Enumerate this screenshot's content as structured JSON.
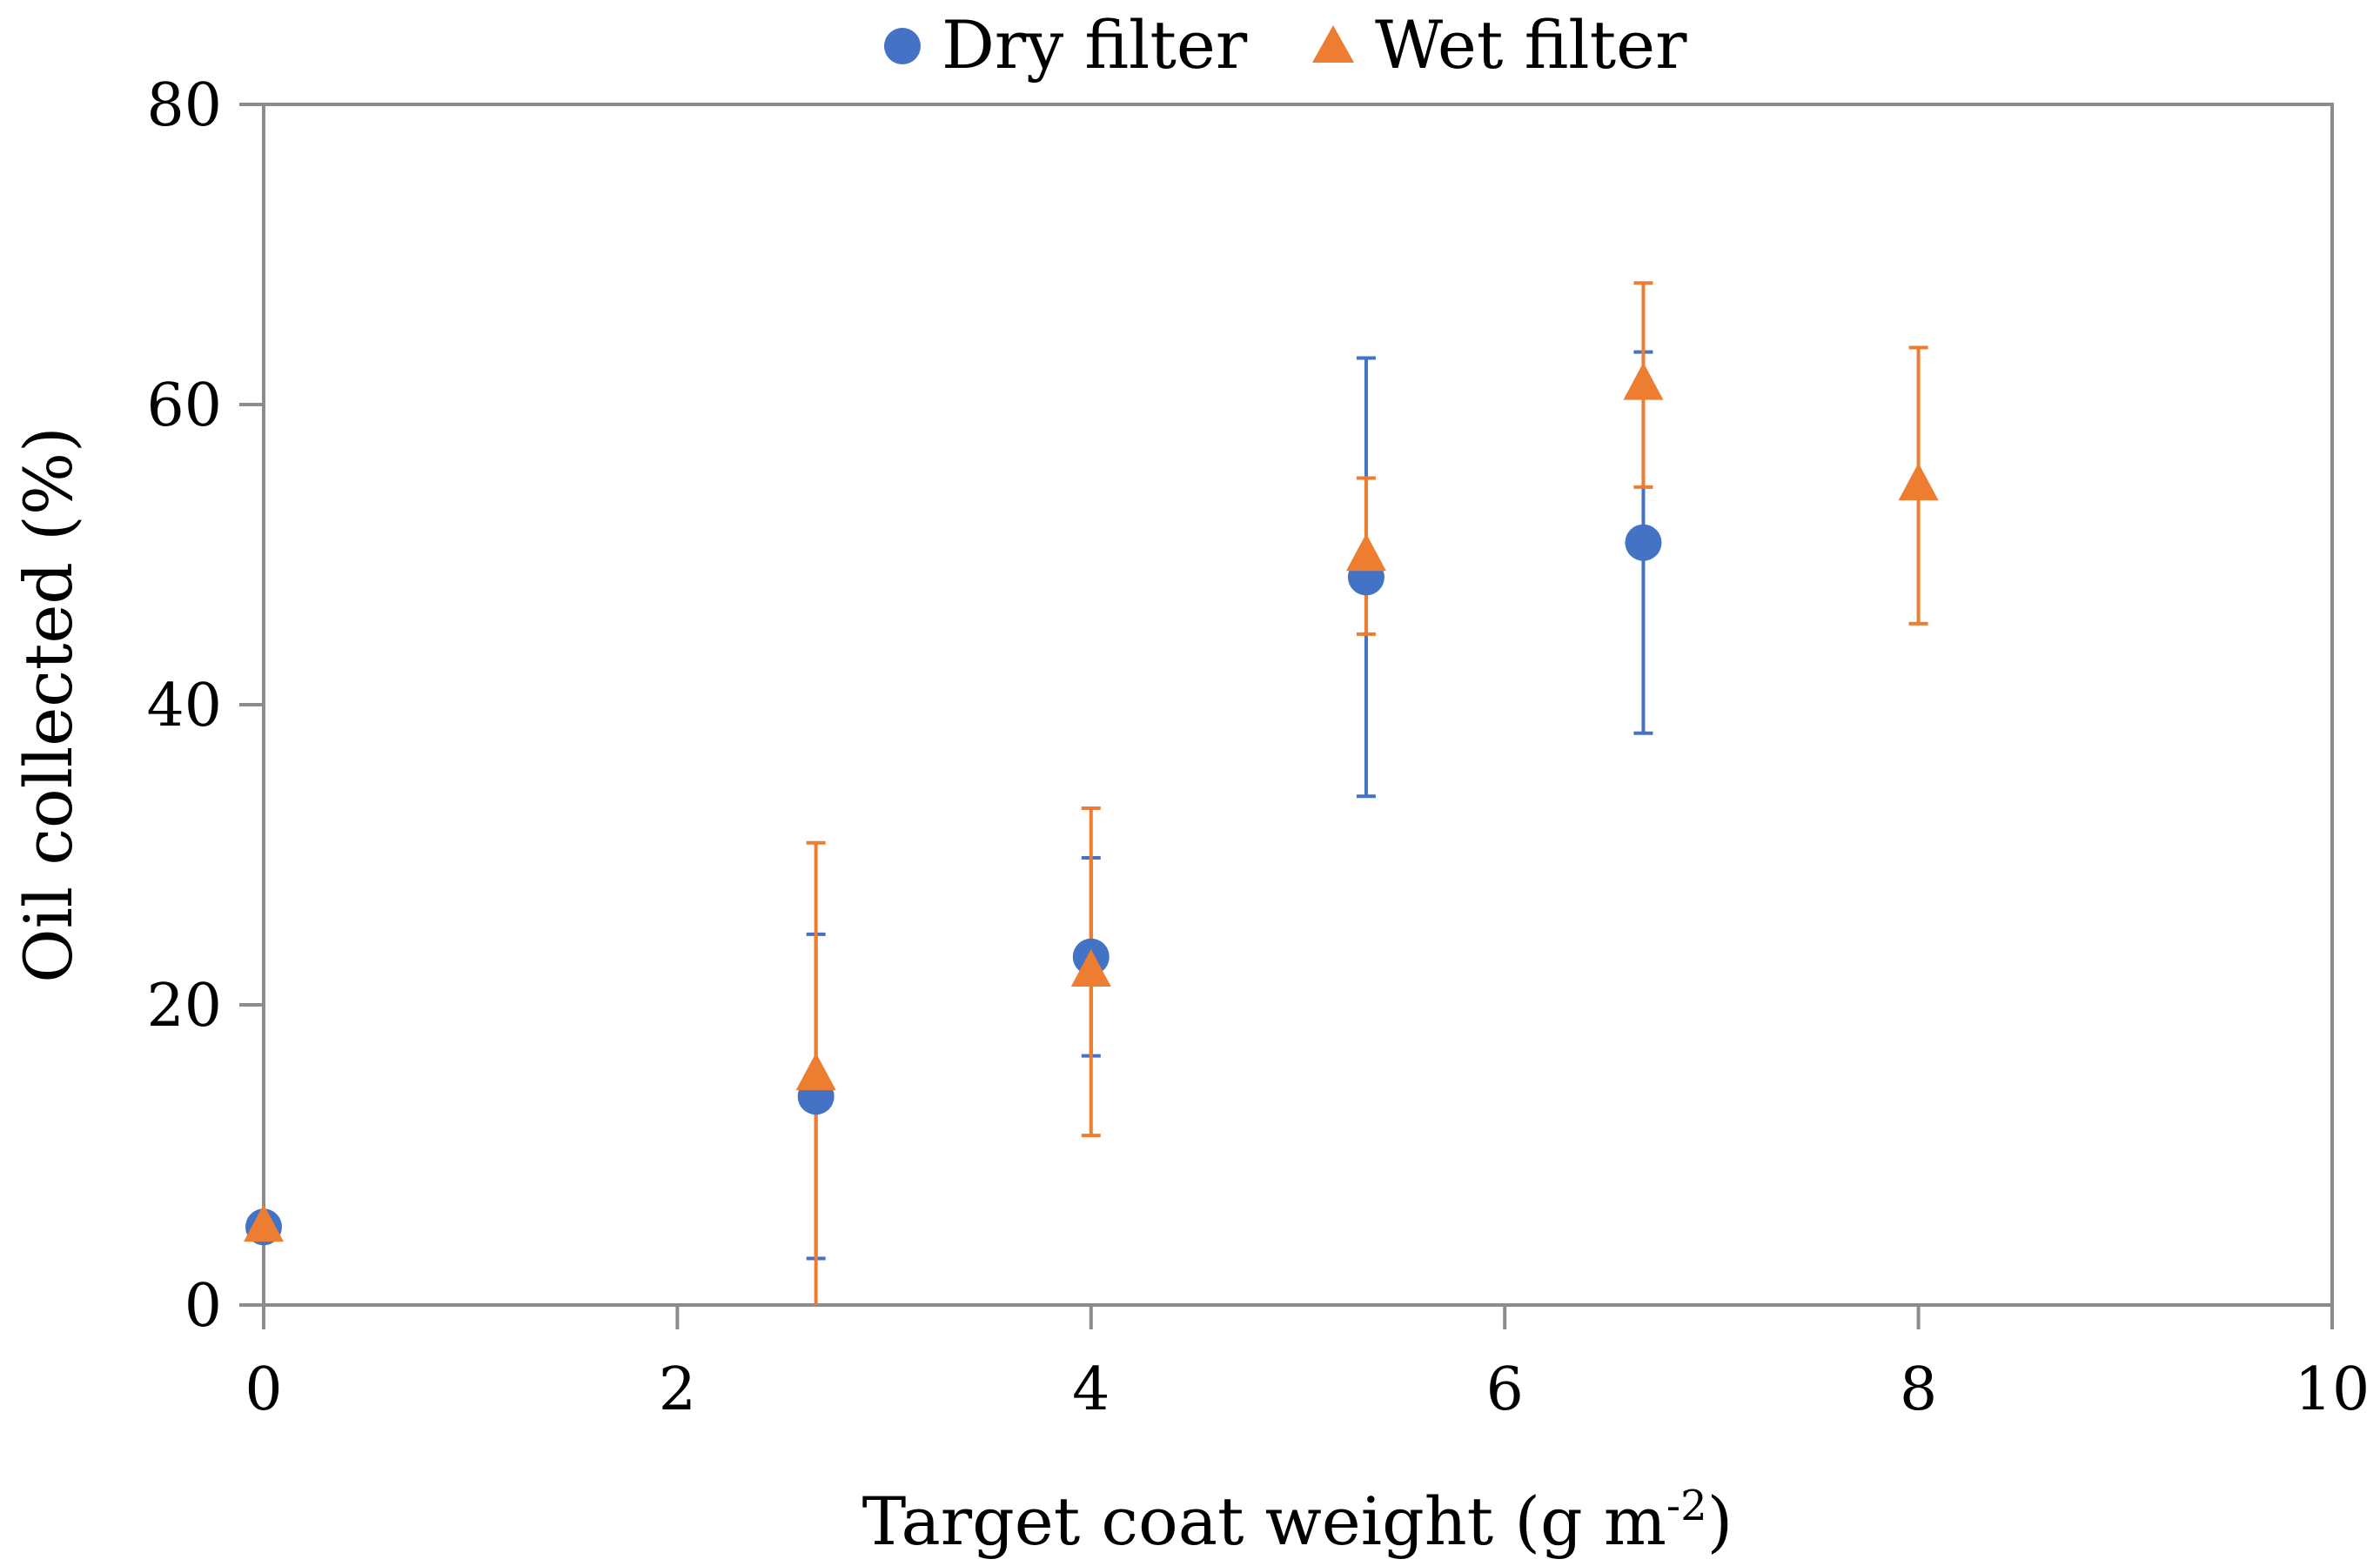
{
  "chart_data": {
    "type": "scatter",
    "title": "",
    "xlabel": "Target coat weight (g m",
    "xlabel_sup": "-2",
    "xlabel_end": ")",
    "ylabel": "Oil collected (%)",
    "xlim": [
      0,
      10
    ],
    "ylim": [
      0,
      80
    ],
    "xticks": [
      "0",
      "2",
      "4",
      "6",
      "8",
      "10"
    ],
    "yticks": [
      "0",
      "20",
      "40",
      "60",
      "80"
    ],
    "grid": false,
    "legend_position": "top-center",
    "series": [
      {
        "name": "Dry filter",
        "marker": "circle",
        "color": "#4472C4",
        "points": [
          {
            "x": 0,
            "y": 5.2,
            "err": null
          },
          {
            "x": 2.67,
            "y": 13.9,
            "err": 10.8
          },
          {
            "x": 4.0,
            "y": 23.2,
            "err": 6.6
          },
          {
            "x": 5.33,
            "y": 48.5,
            "err": 14.6
          },
          {
            "x": 6.67,
            "y": 50.8,
            "err": 12.7
          }
        ]
      },
      {
        "name": "Wet filter",
        "marker": "triangle",
        "color": "#ED7D31",
        "points": [
          {
            "x": 0,
            "y": 5.2,
            "err": null
          },
          {
            "x": 2.67,
            "y": 15.3,
            "err": 15.5
          },
          {
            "x": 4.0,
            "y": 22.2,
            "err": 10.9
          },
          {
            "x": 5.33,
            "y": 49.9,
            "err": 5.2
          },
          {
            "x": 6.67,
            "y": 61.3,
            "err": 6.8
          },
          {
            "x": 8.0,
            "y": 54.6,
            "err": 9.2
          }
        ]
      }
    ]
  }
}
